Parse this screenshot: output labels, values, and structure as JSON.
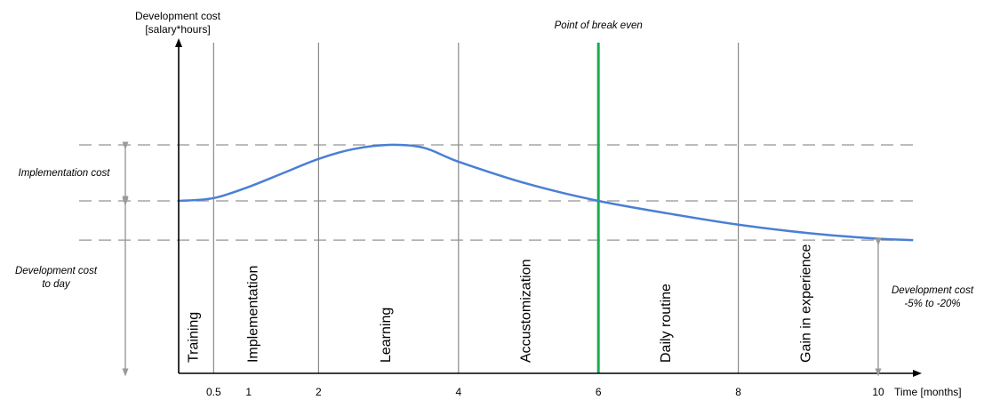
{
  "chart_data": {
    "type": "line",
    "ylabel": [
      "Development cost",
      "[salary*hours]"
    ],
    "xlabel": "Time [months]",
    "x_ticks": [
      {
        "value": 0.5,
        "label": "0.5"
      },
      {
        "value": 1,
        "label": "1"
      },
      {
        "value": 2,
        "label": "2"
      },
      {
        "value": 4,
        "label": "4"
      },
      {
        "value": 6,
        "label": "6"
      },
      {
        "value": 8,
        "label": "8"
      },
      {
        "value": 10,
        "label": "10"
      }
    ],
    "xlim": [
      0,
      10.5
    ],
    "ylim": [
      0,
      100
    ],
    "levels": {
      "baseline": 60,
      "peak": 80,
      "reduced": 46
    },
    "phase_boundaries": [
      0.5,
      2,
      4,
      6,
      8
    ],
    "phases": [
      {
        "label": "Training",
        "x": 0.2
      },
      {
        "label": "Implementation",
        "x": 1.05
      },
      {
        "label": "Learning",
        "x": 2.95
      },
      {
        "label": "Accustomization",
        "x": 4.95
      },
      {
        "label": "Daily routine",
        "x": 6.95
      },
      {
        "label": "Gain in experience",
        "x": 8.95
      }
    ],
    "break_even": {
      "x": 6,
      "label": "Point of break even",
      "color": "#1aae4b"
    },
    "series": [
      {
        "color": "#4a7fd4",
        "x": [
          0,
          0.5,
          1,
          1.5,
          2,
          2.5,
          3,
          3.5,
          4,
          5,
          6,
          7,
          8,
          9,
          10,
          10.5
        ],
        "y": [
          60,
          61,
          65,
          70,
          75,
          78.5,
          80,
          79,
          74,
          66,
          60,
          55.5,
          51.5,
          48.5,
          46.5,
          46
        ]
      }
    ],
    "annotations": [
      {
        "id": "impl",
        "text": [
          "Implementation cost"
        ]
      },
      {
        "id": "today",
        "text": [
          "Development cost",
          "to day"
        ]
      },
      {
        "id": "reduce",
        "text": [
          "Development cost",
          "-5% to -20%"
        ]
      }
    ],
    "colors": {
      "curve": "#4a7fd4",
      "break_even": "#1aae4b",
      "grid": "#888888",
      "dashed": "#a6a6a6",
      "measure": "#9a9a9a"
    }
  }
}
